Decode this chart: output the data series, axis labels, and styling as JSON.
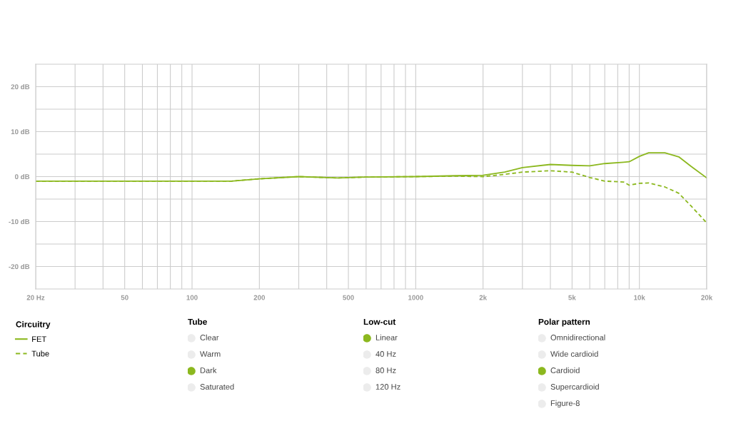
{
  "chart_data": [
    {
      "type": "line",
      "legend_title": "Circuitry",
      "legend": "bottom left",
      "grid": true,
      "log": "x",
      "xlim": [
        20,
        20000
      ],
      "xticks": [
        {
          "value": 20,
          "label": "20 Hz"
        },
        {
          "value": 30,
          "label": null
        },
        {
          "value": 40,
          "label": null
        },
        50,
        {
          "value": 60,
          "label": null
        },
        {
          "value": 70,
          "label": null
        },
        {
          "value": 80,
          "label": null
        },
        {
          "value": 90,
          "label": null
        },
        100,
        200,
        {
          "value": 300,
          "label": null
        },
        {
          "value": 400,
          "label": null
        },
        500,
        {
          "value": 600,
          "label": null
        },
        {
          "value": 700,
          "label": null
        },
        {
          "value": 800,
          "label": null
        },
        {
          "value": 900,
          "label": null
        },
        1000,
        {
          "value": 2000,
          "label": "2k"
        },
        {
          "value": 3000,
          "label": null
        },
        {
          "value": 4000,
          "label": null
        },
        {
          "value": 5000,
          "label": "5k"
        },
        {
          "value": 6000,
          "label": null
        },
        {
          "value": 7000,
          "label": null
        },
        {
          "value": 8000,
          "label": null
        },
        {
          "value": 9000,
          "label": null
        },
        {
          "value": 10000,
          "label": "10k"
        },
        {
          "value": 20000,
          "label": "20k"
        }
      ],
      "ylim": [
        -25,
        25
      ],
      "yticks": [
        {
          "value": -20,
          "label": "-20 dB"
        },
        {
          "value": -15,
          "label": null
        },
        {
          "value": -10,
          "label": "-10 dB"
        },
        {
          "value": -5,
          "label": null
        },
        {
          "value": 0,
          "label": "0 dB"
        },
        {
          "value": 5,
          "label": null
        },
        {
          "value": 10,
          "label": "10 dB"
        },
        {
          "value": 15,
          "label": null
        },
        {
          "value": 20,
          "label": "20 dB"
        }
      ],
      "x": [
        20,
        50,
        100,
        150,
        200,
        300,
        450,
        600,
        1000,
        1500,
        2000,
        2500,
        3000,
        4000,
        5000,
        6000,
        7000,
        8500,
        9000,
        10000,
        11000,
        13000,
        15000,
        17000,
        20000
      ],
      "series": [
        {
          "name": "FET",
          "color": "#8cb81f",
          "line_style": "solid",
          "values": [
            -1,
            -1,
            -1,
            -1,
            -0.5,
            0,
            -0.3,
            -0.1,
            0,
            0.2,
            0.3,
            1,
            2,
            2.7,
            2.5,
            2.4,
            2.9,
            3.2,
            3.3,
            4.5,
            5.3,
            5.3,
            4.4,
            2.3,
            -0.3
          ]
        },
        {
          "name": "Tube",
          "color": "#8cb81f",
          "line_style": "dashed",
          "values": [
            -1,
            -1,
            -1,
            -1,
            -0.5,
            0,
            -0.3,
            -0.1,
            0,
            0.1,
            0,
            0.5,
            1,
            1.3,
            1,
            -0.2,
            -1,
            -1.2,
            -1.9,
            -1.5,
            -1.4,
            -2.3,
            -3.7,
            -6.5,
            -10.3
          ]
        }
      ]
    },
    {
      "type": "other",
      "title": "Tube",
      "categories": [
        "Clear",
        "Warm",
        "Dark",
        "Saturated"
      ],
      "colors": [
        "#ececec",
        "#ececec",
        "#8cb81f",
        "#ececec"
      ]
    },
    {
      "type": "other",
      "title": "Low-cut",
      "categories": [
        "Linear",
        "40 Hz",
        "80 Hz",
        "120 Hz"
      ],
      "colors": [
        "#8cb81f",
        "#ececec",
        "#ececec",
        "#ececec"
      ]
    },
    {
      "type": "other",
      "title": "Polar pattern",
      "categories": [
        "Omnidirectional",
        "Wide cardioid",
        "Cardioid",
        "Supercardioid",
        "Figure-8"
      ],
      "colors": [
        "#ececec",
        "#ececec",
        "#8cb81f",
        "#ececec",
        "#ececec"
      ]
    }
  ]
}
